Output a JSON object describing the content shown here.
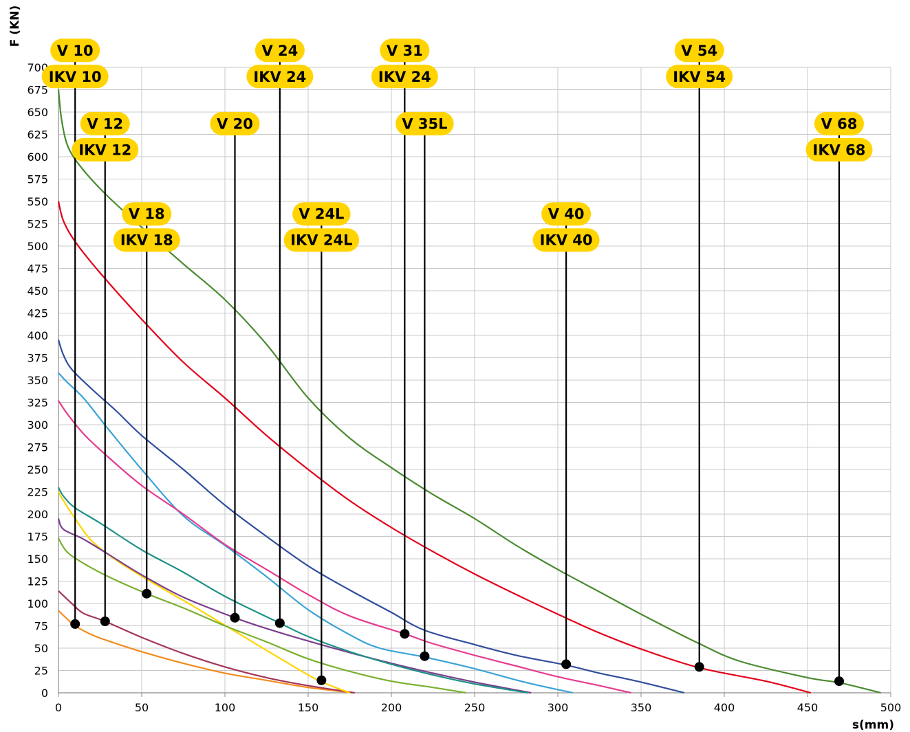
{
  "chart_data": {
    "type": "line",
    "xlabel": "s(mm)",
    "ylabel": "F (KN)",
    "xlim": [
      0,
      500
    ],
    "ylim": [
      0,
      700
    ],
    "x_ticks": [
      0,
      50,
      100,
      150,
      200,
      250,
      300,
      350,
      400,
      450,
      500
    ],
    "y_ticks": [
      0,
      25,
      50,
      75,
      100,
      125,
      150,
      175,
      200,
      225,
      250,
      275,
      300,
      325,
      350,
      375,
      400,
      425,
      450,
      475,
      500,
      525,
      550,
      575,
      600,
      625,
      650,
      675,
      700
    ],
    "grid": true,
    "series": [
      {
        "color": "#f28c1c",
        "points": [
          [
            0,
            92
          ],
          [
            5,
            83
          ],
          [
            10,
            75
          ],
          [
            20,
            65
          ],
          [
            30,
            58
          ],
          [
            50,
            46
          ],
          [
            75,
            33
          ],
          [
            100,
            22
          ],
          [
            125,
            14
          ],
          [
            150,
            6
          ],
          [
            177,
            0
          ]
        ]
      },
      {
        "color": "#a3355a",
        "points": [
          [
            0,
            114
          ],
          [
            8,
            100
          ],
          [
            15,
            89
          ],
          [
            28,
            80
          ],
          [
            50,
            62
          ],
          [
            75,
            44
          ],
          [
            100,
            29
          ],
          [
            125,
            17
          ],
          [
            150,
            8
          ],
          [
            178,
            0
          ]
        ]
      },
      {
        "color": "#ffd400",
        "points": [
          [
            0,
            225
          ],
          [
            3,
            215
          ],
          [
            10,
            195
          ],
          [
            20,
            170
          ],
          [
            35,
            148
          ],
          [
            55,
            125
          ],
          [
            80,
            98
          ],
          [
            105,
            70
          ],
          [
            130,
            42
          ],
          [
            155,
            15
          ],
          [
            175,
            0
          ]
        ]
      },
      {
        "color": "#7ab030",
        "points": [
          [
            0,
            173
          ],
          [
            5,
            158
          ],
          [
            15,
            145
          ],
          [
            30,
            130
          ],
          [
            53,
            111
          ],
          [
            75,
            95
          ],
          [
            100,
            75
          ],
          [
            125,
            57
          ],
          [
            150,
            38
          ],
          [
            175,
            24
          ],
          [
            200,
            13
          ],
          [
            225,
            6
          ],
          [
            245,
            0
          ]
        ]
      },
      {
        "color": "#7d3f8e",
        "points": [
          [
            0,
            195
          ],
          [
            3,
            183
          ],
          [
            15,
            172
          ],
          [
            30,
            155
          ],
          [
            50,
            132
          ],
          [
            75,
            107
          ],
          [
            106,
            84
          ],
          [
            125,
            72
          ],
          [
            150,
            58
          ],
          [
            175,
            45
          ],
          [
            200,
            33
          ],
          [
            225,
            22
          ],
          [
            250,
            12
          ],
          [
            284,
            0
          ]
        ]
      },
      {
        "color": "#1e9287",
        "points": [
          [
            0,
            230
          ],
          [
            3,
            220
          ],
          [
            10,
            207
          ],
          [
            25,
            190
          ],
          [
            50,
            160
          ],
          [
            75,
            135
          ],
          [
            100,
            108
          ],
          [
            133,
            78
          ],
          [
            150,
            63
          ],
          [
            175,
            46
          ],
          [
            200,
            32
          ],
          [
            225,
            20
          ],
          [
            250,
            10
          ],
          [
            282,
            0
          ]
        ]
      },
      {
        "color": "#3aa3d6",
        "points": [
          [
            0,
            358
          ],
          [
            5,
            348
          ],
          [
            15,
            330
          ],
          [
            30,
            295
          ],
          [
            50,
            250
          ],
          [
            75,
            198
          ],
          [
            100,
            165
          ],
          [
            125,
            130
          ],
          [
            150,
            93
          ],
          [
            175,
            65
          ],
          [
            193,
            50
          ],
          [
            220,
            40
          ],
          [
            250,
            27
          ],
          [
            280,
            12
          ],
          [
            309,
            0
          ]
        ]
      },
      {
        "color": "#e63c90",
        "points": [
          [
            0,
            327
          ],
          [
            5,
            313
          ],
          [
            15,
            290
          ],
          [
            28,
            267
          ],
          [
            50,
            232
          ],
          [
            75,
            200
          ],
          [
            100,
            166
          ],
          [
            125,
            138
          ],
          [
            150,
            110
          ],
          [
            175,
            86
          ],
          [
            208,
            66
          ],
          [
            225,
            55
          ],
          [
            250,
            42
          ],
          [
            275,
            30
          ],
          [
            300,
            18
          ],
          [
            325,
            8
          ],
          [
            344,
            0
          ]
        ]
      },
      {
        "color": "#2f4e9c",
        "points": [
          [
            0,
            395
          ],
          [
            3,
            378
          ],
          [
            8,
            362
          ],
          [
            20,
            340
          ],
          [
            35,
            315
          ],
          [
            50,
            288
          ],
          [
            75,
            250
          ],
          [
            100,
            210
          ],
          [
            125,
            175
          ],
          [
            150,
            142
          ],
          [
            175,
            115
          ],
          [
            200,
            90
          ],
          [
            220,
            70
          ],
          [
            250,
            54
          ],
          [
            275,
            42
          ],
          [
            305,
            31
          ],
          [
            325,
            22
          ],
          [
            350,
            12
          ],
          [
            376,
            0
          ]
        ]
      },
      {
        "color": "#e3001b",
        "points": [
          [
            0,
            550
          ],
          [
            3,
            528
          ],
          [
            10,
            505
          ],
          [
            25,
            470
          ],
          [
            50,
            418
          ],
          [
            75,
            370
          ],
          [
            100,
            330
          ],
          [
            125,
            288
          ],
          [
            150,
            250
          ],
          [
            175,
            215
          ],
          [
            200,
            185
          ],
          [
            225,
            158
          ],
          [
            250,
            133
          ],
          [
            275,
            110
          ],
          [
            300,
            88
          ],
          [
            325,
            67
          ],
          [
            350,
            49
          ],
          [
            385,
            28
          ],
          [
            425,
            13
          ],
          [
            452,
            0
          ]
        ]
      },
      {
        "color": "#4a8a30",
        "points": [
          [
            0,
            675
          ],
          [
            2,
            640
          ],
          [
            6,
            610
          ],
          [
            15,
            585
          ],
          [
            30,
            555
          ],
          [
            53,
            516
          ],
          [
            75,
            480
          ],
          [
            100,
            440
          ],
          [
            125,
            390
          ],
          [
            150,
            330
          ],
          [
            175,
            285
          ],
          [
            200,
            252
          ],
          [
            225,
            222
          ],
          [
            250,
            195
          ],
          [
            275,
            165
          ],
          [
            300,
            138
          ],
          [
            325,
            113
          ],
          [
            350,
            88
          ],
          [
            385,
            55
          ],
          [
            410,
            35
          ],
          [
            450,
            17
          ],
          [
            470,
            11
          ],
          [
            494,
            0
          ]
        ]
      }
    ],
    "markers": [
      [
        10,
        77
      ],
      [
        28,
        80
      ],
      [
        53,
        111
      ],
      [
        106,
        84
      ],
      [
        133,
        78
      ],
      [
        158,
        14
      ],
      [
        208,
        66
      ],
      [
        220,
        41
      ],
      [
        305,
        32
      ],
      [
        385,
        29
      ],
      [
        469,
        13
      ]
    ],
    "drop_lines": [
      {
        "x": 10,
        "from": 719,
        "to": 77,
        "labels": [
          "V 10",
          "IKV 10"
        ]
      },
      {
        "x": 28,
        "from": 637,
        "to": 80,
        "labels": [
          "V 12",
          "IKV 12"
        ]
      },
      {
        "x": 53,
        "from": 536,
        "to": 111,
        "labels": [
          "V 18",
          "IKV 18"
        ]
      },
      {
        "x": 106,
        "from": 637,
        "to": 84,
        "labels": [
          "V 20"
        ]
      },
      {
        "x": 133,
        "from": 719,
        "to": 78,
        "labels": [
          "V 24",
          "IKV 24"
        ]
      },
      {
        "x": 158,
        "from": 536,
        "to": 14,
        "labels": [
          "V 24L",
          "IKV 24L"
        ]
      },
      {
        "x": 208,
        "from": 719,
        "to": 66,
        "labels": [
          "V 31",
          "IKV 24"
        ]
      },
      {
        "x": 220,
        "from": 637,
        "to": 41,
        "labels": [
          "V 35L"
        ]
      },
      {
        "x": 305,
        "from": 536,
        "to": 32,
        "labels": [
          "V 40",
          "IKV 40"
        ]
      },
      {
        "x": 385,
        "from": 719,
        "to": 29,
        "labels": [
          "V 54",
          "IKV 54"
        ]
      },
      {
        "x": 469,
        "from": 637,
        "to": 13,
        "labels": [
          "V 68",
          "IKV 68"
        ]
      }
    ]
  }
}
